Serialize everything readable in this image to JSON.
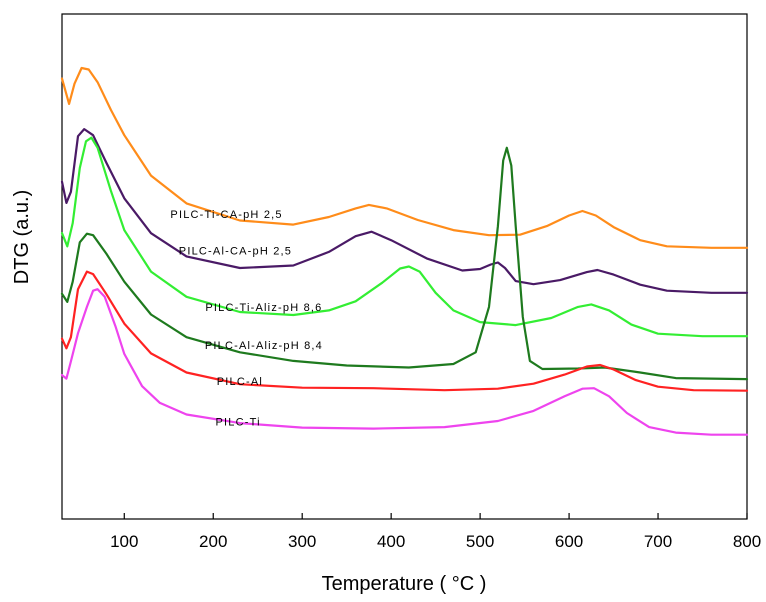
{
  "chart_data": {
    "type": "line",
    "xlabel": "Temperature ( °C )",
    "ylabel": "DTG (a.u.)",
    "xlim": [
      30,
      800
    ],
    "x_ticks": [
      100,
      200,
      300,
      400,
      500,
      600,
      700,
      800
    ],
    "y_ticks_shown": false,
    "grid": false,
    "legend": "none",
    "series": [
      {
        "name": "PILC-Ti-CA-pH 2,5",
        "color": "#ff8c1a",
        "points": [
          [
            30,
            0.872
          ],
          [
            38,
            0.822
          ],
          [
            44,
            0.862
          ],
          [
            52,
            0.893
          ],
          [
            60,
            0.89
          ],
          [
            70,
            0.865
          ],
          [
            85,
            0.81
          ],
          [
            100,
            0.76
          ],
          [
            130,
            0.68
          ],
          [
            170,
            0.625
          ],
          [
            230,
            0.591
          ],
          [
            290,
            0.583
          ],
          [
            330,
            0.598
          ],
          [
            360,
            0.615
          ],
          [
            375,
            0.622
          ],
          [
            395,
            0.615
          ],
          [
            430,
            0.592
          ],
          [
            470,
            0.572
          ],
          [
            510,
            0.562
          ],
          [
            545,
            0.563
          ],
          [
            575,
            0.58
          ],
          [
            600,
            0.601
          ],
          [
            615,
            0.61
          ],
          [
            630,
            0.601
          ],
          [
            650,
            0.578
          ],
          [
            680,
            0.552
          ],
          [
            710,
            0.54
          ],
          [
            760,
            0.537
          ],
          [
            800,
            0.537
          ]
        ]
      },
      {
        "name": "PILC-Al-CA-pH 2,5",
        "color": "#4a1a66",
        "points": [
          [
            30,
            0.668
          ],
          [
            35,
            0.626
          ],
          [
            40,
            0.648
          ],
          [
            48,
            0.758
          ],
          [
            55,
            0.772
          ],
          [
            65,
            0.76
          ],
          [
            80,
            0.705
          ],
          [
            100,
            0.635
          ],
          [
            130,
            0.566
          ],
          [
            170,
            0.52
          ],
          [
            230,
            0.497
          ],
          [
            290,
            0.502
          ],
          [
            330,
            0.529
          ],
          [
            360,
            0.56
          ],
          [
            378,
            0.569
          ],
          [
            400,
            0.552
          ],
          [
            440,
            0.516
          ],
          [
            480,
            0.492
          ],
          [
            500,
            0.495
          ],
          [
            512,
            0.504
          ],
          [
            520,
            0.508
          ],
          [
            528,
            0.497
          ],
          [
            540,
            0.471
          ],
          [
            560,
            0.465
          ],
          [
            590,
            0.473
          ],
          [
            620,
            0.489
          ],
          [
            632,
            0.493
          ],
          [
            650,
            0.484
          ],
          [
            680,
            0.464
          ],
          [
            710,
            0.452
          ],
          [
            760,
            0.448
          ],
          [
            800,
            0.448
          ]
        ]
      },
      {
        "name": "PILC-Ti-Aliz-pH 8,6",
        "color": "#33ee33",
        "points": [
          [
            30,
            0.566
          ],
          [
            36,
            0.54
          ],
          [
            42,
            0.586
          ],
          [
            50,
            0.695
          ],
          [
            57,
            0.748
          ],
          [
            63,
            0.755
          ],
          [
            70,
            0.735
          ],
          [
            85,
            0.65
          ],
          [
            100,
            0.572
          ],
          [
            130,
            0.49
          ],
          [
            170,
            0.44
          ],
          [
            230,
            0.41
          ],
          [
            290,
            0.404
          ],
          [
            330,
            0.413
          ],
          [
            360,
            0.431
          ],
          [
            390,
            0.468
          ],
          [
            410,
            0.496
          ],
          [
            420,
            0.5
          ],
          [
            432,
            0.49
          ],
          [
            450,
            0.448
          ],
          [
            470,
            0.413
          ],
          [
            500,
            0.39
          ],
          [
            540,
            0.384
          ],
          [
            580,
            0.398
          ],
          [
            610,
            0.42
          ],
          [
            625,
            0.425
          ],
          [
            645,
            0.413
          ],
          [
            670,
            0.385
          ],
          [
            700,
            0.367
          ],
          [
            750,
            0.362
          ],
          [
            800,
            0.362
          ]
        ]
      },
      {
        "name": "PILC-Al-Aliz-pH 8,4",
        "color": "#1e7a1e",
        "points": [
          [
            30,
            0.446
          ],
          [
            36,
            0.43
          ],
          [
            42,
            0.47
          ],
          [
            50,
            0.548
          ],
          [
            58,
            0.565
          ],
          [
            65,
            0.562
          ],
          [
            80,
            0.525
          ],
          [
            100,
            0.47
          ],
          [
            130,
            0.405
          ],
          [
            170,
            0.36
          ],
          [
            230,
            0.33
          ],
          [
            290,
            0.313
          ],
          [
            350,
            0.304
          ],
          [
            420,
            0.3
          ],
          [
            470,
            0.307
          ],
          [
            495,
            0.33
          ],
          [
            510,
            0.42
          ],
          [
            520,
            0.58
          ],
          [
            526,
            0.71
          ],
          [
            530,
            0.735
          ],
          [
            535,
            0.7
          ],
          [
            540,
            0.58
          ],
          [
            548,
            0.4
          ],
          [
            556,
            0.313
          ],
          [
            570,
            0.297
          ],
          [
            610,
            0.298
          ],
          [
            640,
            0.3
          ],
          [
            680,
            0.29
          ],
          [
            720,
            0.279
          ],
          [
            800,
            0.277
          ]
        ]
      },
      {
        "name": "PILC-Al",
        "color": "#ff2222",
        "points": [
          [
            30,
            0.357
          ],
          [
            35,
            0.338
          ],
          [
            40,
            0.36
          ],
          [
            48,
            0.455
          ],
          [
            58,
            0.49
          ],
          [
            65,
            0.485
          ],
          [
            80,
            0.445
          ],
          [
            100,
            0.387
          ],
          [
            130,
            0.328
          ],
          [
            170,
            0.29
          ],
          [
            230,
            0.267
          ],
          [
            300,
            0.26
          ],
          [
            380,
            0.259
          ],
          [
            460,
            0.255
          ],
          [
            520,
            0.258
          ],
          [
            560,
            0.268
          ],
          [
            595,
            0.286
          ],
          [
            620,
            0.302
          ],
          [
            635,
            0.305
          ],
          [
            650,
            0.296
          ],
          [
            675,
            0.275
          ],
          [
            700,
            0.262
          ],
          [
            740,
            0.255
          ],
          [
            800,
            0.254
          ]
        ]
      },
      {
        "name": "PILC-Ti",
        "color": "#ee44ee",
        "points": [
          [
            30,
            0.285
          ],
          [
            35,
            0.278
          ],
          [
            40,
            0.312
          ],
          [
            48,
            0.368
          ],
          [
            58,
            0.42
          ],
          [
            65,
            0.452
          ],
          [
            70,
            0.455
          ],
          [
            78,
            0.44
          ],
          [
            90,
            0.382
          ],
          [
            100,
            0.327
          ],
          [
            120,
            0.263
          ],
          [
            140,
            0.23
          ],
          [
            170,
            0.207
          ],
          [
            230,
            0.19
          ],
          [
            300,
            0.181
          ],
          [
            380,
            0.179
          ],
          [
            460,
            0.182
          ],
          [
            520,
            0.194
          ],
          [
            560,
            0.214
          ],
          [
            595,
            0.243
          ],
          [
            615,
            0.258
          ],
          [
            628,
            0.259
          ],
          [
            645,
            0.243
          ],
          [
            665,
            0.21
          ],
          [
            690,
            0.182
          ],
          [
            720,
            0.171
          ],
          [
            760,
            0.167
          ],
          [
            800,
            0.167
          ]
        ]
      }
    ],
    "annotations": [
      {
        "text": "PILC-Ti-CA-pH 2,5",
        "x": 215,
        "y": 0.596
      },
      {
        "text": "PILC-Al-CA-pH 2,5",
        "x": 225,
        "y": 0.524
      },
      {
        "text": "PILC-Ti-Aliz-pH 8,6",
        "x": 257,
        "y": 0.412
      },
      {
        "text": "PILC-Al-Aliz-pH 8,4",
        "x": 257,
        "y": 0.337
      },
      {
        "text": "PILC-Al",
        "x": 230,
        "y": 0.265
      },
      {
        "text": "PILC-Ti",
        "x": 228,
        "y": 0.185
      }
    ]
  }
}
